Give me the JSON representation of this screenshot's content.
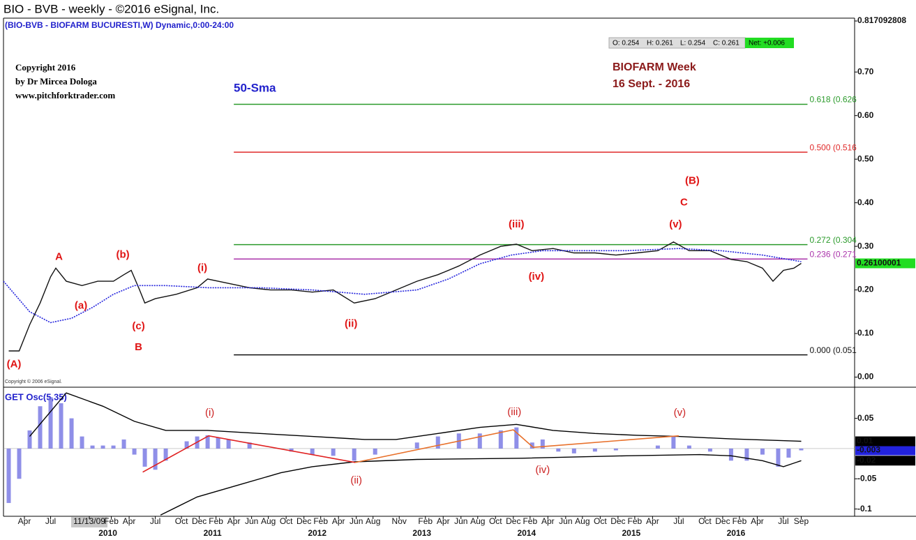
{
  "title": "BIO - BVB - weekly - ©2016 eSignal, Inc.",
  "subtitle": "(BIO-BVB - BIOFARM BUCURESTI,W) Dynamic,0:00-24:00",
  "copyright": [
    "Copyright 2016",
    "by Dr Mircea Dologa",
    "www.pitchforktrader.com"
  ],
  "note": [
    "BIOFARM Week",
    "16 Sept. -  2016"
  ],
  "esignal_note": "Copyright © 2006 eSignal.",
  "ohlc": [
    "O: 0.254",
    "H: 0.261",
    "L: 0.254",
    "C: 0.261"
  ],
  "net": "Net: +0.006",
  "chart_data": [
    {
      "type": "line",
      "xlim": [
        2009.05,
        2017.18
      ],
      "ylim": [
        -0.02,
        0.83
      ],
      "yticks": [
        {
          "value": 0,
          "label": "0.00"
        },
        {
          "value": 0.1,
          "label": "0.10"
        },
        {
          "value": 0.2,
          "label": "0.20"
        },
        {
          "value": 0.3,
          "label": "0.30"
        },
        {
          "value": 0.4,
          "label": "0.40"
        },
        {
          "value": 0.5,
          "label": "0.50"
        },
        {
          "value": 0.6,
          "label": "0.60"
        },
        {
          "value": 0.7,
          "label": "0.70"
        },
        0.817092808
      ],
      "xticks": [
        {
          "value": 2009.25,
          "label": "Apr"
        },
        {
          "value": 2009.5,
          "label": "Jul"
        },
        {
          "value": 2009.87,
          "label": "11/13/09"
        },
        {
          "value": 2010.08,
          "label": "Feb"
        },
        {
          "value": 2010.25,
          "label": "Apr"
        },
        {
          "value": 2010.5,
          "label": "Jul"
        },
        {
          "value": 2010.75,
          "label": "Oct"
        },
        {
          "value": 2010.92,
          "label": "Dec"
        },
        {
          "value": 2011.08,
          "label": "Feb"
        },
        {
          "value": 2011.25,
          "label": "Apr"
        },
        {
          "value": 2011.42,
          "label": "Jun"
        },
        {
          "value": 2011.58,
          "label": "Aug"
        },
        {
          "value": 2011.75,
          "label": "Oct"
        },
        {
          "value": 2011.92,
          "label": "Dec"
        },
        {
          "value": 2012.08,
          "label": "Feb"
        },
        {
          "value": 2012.25,
          "label": "Apr"
        },
        {
          "value": 2012.42,
          "label": "Jun"
        },
        {
          "value": 2012.58,
          "label": "Aug"
        },
        {
          "value": 2012.83,
          "label": "Nov"
        },
        {
          "value": 2013.08,
          "label": "Feb"
        },
        {
          "value": 2013.25,
          "label": "Apr"
        },
        {
          "value": 2013.42,
          "label": "Jun"
        },
        {
          "value": 2013.58,
          "label": "Aug"
        },
        {
          "value": 2013.75,
          "label": "Oct"
        },
        {
          "value": 2013.92,
          "label": "Dec"
        },
        {
          "value": 2014.08,
          "label": "Feb"
        },
        {
          "value": 2014.25,
          "label": "Apr"
        },
        {
          "value": 2014.42,
          "label": "Jun"
        },
        {
          "value": 2014.58,
          "label": "Aug"
        },
        {
          "value": 2014.75,
          "label": "Oct"
        },
        {
          "value": 2014.92,
          "label": "Dec"
        },
        {
          "value": 2015.08,
          "label": "Feb"
        },
        {
          "value": 2015.25,
          "label": "Apr"
        },
        {
          "value": 2015.5,
          "label": "Jul"
        },
        {
          "value": 2015.75,
          "label": "Oct"
        },
        {
          "value": 2015.92,
          "label": "Dec"
        },
        {
          "value": 2016.08,
          "label": "Feb"
        },
        {
          "value": 2016.25,
          "label": "Apr"
        },
        {
          "value": 2016.5,
          "label": "Jul"
        },
        {
          "value": 2016.67,
          "label": "Sep"
        }
      ],
      "cursor_tick": 2,
      "year_ticks": [
        2010,
        2011,
        2012,
        2013,
        2014,
        2015,
        2016
      ],
      "series": [
        {
          "color": "#111111",
          "kind": "line",
          "last_label": "0.26100001",
          "label_color": "#22dd22",
          "x": [
            2009.1,
            2009.2,
            2009.3,
            2009.4,
            2009.5,
            2009.55,
            2009.65,
            2009.8,
            2009.95,
            2010.1,
            2010.2,
            2010.27,
            2010.35,
            2010.4,
            2010.5,
            2010.7,
            2010.9,
            2011.0,
            2011.2,
            2011.4,
            2011.6,
            2011.8,
            2012.0,
            2012.2,
            2012.4,
            2012.6,
            2012.8,
            2013.0,
            2013.2,
            2013.4,
            2013.6,
            2013.8,
            2013.95,
            2014.1,
            2014.3,
            2014.5,
            2014.7,
            2014.9,
            2015.1,
            2015.3,
            2015.45,
            2015.6,
            2015.8,
            2016.0,
            2016.15,
            2016.3,
            2016.4,
            2016.5,
            2016.6,
            2016.67
          ],
          "values": [
            0.06,
            0.06,
            0.12,
            0.17,
            0.23,
            0.25,
            0.22,
            0.21,
            0.22,
            0.22,
            0.235,
            0.245,
            0.2,
            0.17,
            0.18,
            0.19,
            0.205,
            0.225,
            0.215,
            0.205,
            0.2,
            0.2,
            0.195,
            0.2,
            0.17,
            0.18,
            0.2,
            0.22,
            0.235,
            0.255,
            0.28,
            0.3,
            0.305,
            0.29,
            0.295,
            0.285,
            0.285,
            0.28,
            0.285,
            0.29,
            0.31,
            0.29,
            0.29,
            0.27,
            0.265,
            0.25,
            0.22,
            0.245,
            0.25,
            0.261
          ]
        },
        {
          "name": "50-Sma",
          "color": "#2222dd",
          "kind": "dotted",
          "x": [
            2009.05,
            2009.3,
            2009.5,
            2009.7,
            2009.9,
            2010.1,
            2010.3,
            2010.6,
            2011.0,
            2011.5,
            2012.0,
            2012.5,
            2013.0,
            2013.3,
            2013.6,
            2013.9,
            2014.2,
            2014.6,
            2015.0,
            2015.5,
            2015.9,
            2016.3,
            2016.67
          ],
          "values": [
            0.22,
            0.15,
            0.125,
            0.135,
            0.16,
            0.19,
            0.21,
            0.21,
            0.205,
            0.205,
            0.2,
            0.19,
            0.2,
            0.225,
            0.26,
            0.28,
            0.29,
            0.29,
            0.29,
            0.295,
            0.29,
            0.28,
            0.265
          ]
        }
      ],
      "levels_x": [
        2011.25,
        2016.73
      ],
      "levels": [
        {
          "label": "0.618 (0.626",
          "value": 0.626,
          "color": "#2a9a2a"
        },
        {
          "label": "0.500 (0.516",
          "value": 0.516,
          "color": "#e02a2a"
        },
        {
          "label": "0.272 (0.304",
          "value": 0.304,
          "color": "#2a9a2a"
        },
        {
          "label": "0.236 (0.271",
          "value": 0.271,
          "color": "#aa33aa"
        },
        {
          "label": "0.000 (0.051",
          "value": 0.051,
          "color": "#111111"
        }
      ],
      "annotation_color": "#e01515",
      "annotations": [
        {
          "text": "(A)",
          "x": 2009.15,
          "y": 0.029
        },
        {
          "text": "A",
          "x": 2009.58,
          "y": 0.275
        },
        {
          "text": "(a)",
          "x": 2009.79,
          "y": 0.163
        },
        {
          "text": "(b)",
          "x": 2010.19,
          "y": 0.28
        },
        {
          "text": "(c)",
          "x": 2010.34,
          "y": 0.116
        },
        {
          "text": "B",
          "x": 2010.34,
          "y": 0.068
        },
        {
          "text": "(i)",
          "x": 2010.95,
          "y": 0.25
        },
        {
          "text": "(ii)",
          "x": 2012.37,
          "y": 0.122
        },
        {
          "text": "(iii)",
          "x": 2013.95,
          "y": 0.35
        },
        {
          "text": "(iv)",
          "x": 2014.14,
          "y": 0.23
        },
        {
          "text": "(v)",
          "x": 2015.47,
          "y": 0.35
        },
        {
          "text": "C",
          "x": 2015.55,
          "y": 0.4
        },
        {
          "text": "(B)",
          "x": 2015.63,
          "y": 0.45
        }
      ]
    },
    {
      "type": "bar",
      "title": "GET Osc(5,35)",
      "xlim": [
        2009.05,
        2017.18
      ],
      "ylim": [
        -0.112,
        0.098
      ],
      "yticks": [
        0.05,
        -0.05,
        -0.1
      ],
      "series": [
        {
          "color": "#6a6ae0",
          "kind": "bar",
          "last_label": "-0.003",
          "label_color": "#2222dd",
          "x": [
            2009.1,
            2009.2,
            2009.3,
            2009.4,
            2009.5,
            2009.6,
            2009.7,
            2009.8,
            2009.9,
            2010.0,
            2010.1,
            2010.2,
            2010.3,
            2010.4,
            2010.5,
            2010.6,
            2010.7,
            2010.8,
            2010.9,
            2011.0,
            2011.1,
            2011.2,
            2011.4,
            2011.6,
            2011.8,
            2012.0,
            2012.2,
            2012.4,
            2012.6,
            2012.8,
            2013.0,
            2013.2,
            2013.4,
            2013.6,
            2013.8,
            2013.95,
            2014.1,
            2014.2,
            2014.35,
            2014.5,
            2014.7,
            2014.9,
            2015.1,
            2015.3,
            2015.45,
            2015.6,
            2015.8,
            2016.0,
            2016.15,
            2016.3,
            2016.45,
            2016.55,
            2016.67
          ],
          "values": [
            -0.09,
            -0.05,
            0.03,
            0.07,
            0.085,
            0.075,
            0.05,
            0.02,
            0.005,
            0.005,
            0.005,
            0.015,
            -0.01,
            -0.03,
            -0.035,
            -0.02,
            0,
            0.012,
            0.02,
            0.022,
            0.018,
            0.015,
            0.01,
            0,
            -0.005,
            -0.01,
            -0.012,
            -0.02,
            -0.01,
            0,
            0.01,
            0.02,
            0.025,
            0.025,
            0.03,
            0.035,
            0.01,
            0.015,
            -0.005,
            -0.008,
            -0.005,
            -0.003,
            0,
            0.005,
            0.02,
            0.005,
            -0.005,
            -0.02,
            -0.02,
            -0.01,
            -0.03,
            -0.015,
            -0.003
          ]
        },
        {
          "color": "#000000",
          "kind": "line",
          "last_label": "0.01",
          "label_color": "#000000",
          "x": [
            2009.3,
            2009.65,
            2010.0,
            2010.3,
            2010.6,
            2011.0,
            2011.5,
            2012.0,
            2012.5,
            2012.8,
            2013.2,
            2013.6,
            2013.95,
            2014.3,
            2014.7,
            2015.1,
            2015.5,
            2016.0,
            2016.67
          ],
          "values": [
            0.02,
            0.092,
            0.07,
            0.045,
            0.03,
            0.03,
            0.025,
            0.02,
            0.015,
            0.015,
            0.025,
            0.035,
            0.04,
            0.03,
            0.025,
            0.022,
            0.02,
            0.016,
            0.012
          ]
        },
        {
          "color": "#000000",
          "kind": "line",
          "last_label": "-0.02",
          "label_color": "#000000",
          "x": [
            2010.55,
            2010.9,
            2011.3,
            2011.7,
            2012.0,
            2012.4,
            2013.0,
            2014.0,
            2015.0,
            2015.7,
            2016.0,
            2016.3,
            2016.5,
            2016.67
          ],
          "values": [
            -0.11,
            -0.08,
            -0.06,
            -0.04,
            -0.03,
            -0.022,
            -0.018,
            -0.016,
            -0.012,
            -0.01,
            -0.012,
            -0.02,
            -0.03,
            -0.02
          ]
        }
      ],
      "trend_lines": [
        {
          "color": "#e02020",
          "x": [
            2010.38,
            2011.01,
            2012.41
          ],
          "y": [
            -0.039,
            0.021,
            -0.023
          ]
        },
        {
          "color": "#e8702a",
          "x": [
            2012.41,
            2013.92,
            2014.11,
            2015.5
          ],
          "y": [
            -0.023,
            0.031,
            0.002,
            0.021
          ]
        }
      ],
      "annotation_color": "#cc2222",
      "annotations": [
        {
          "text": "(i)",
          "x": 2011.02,
          "y": 0.059
        },
        {
          "text": "(ii)",
          "x": 2012.42,
          "y": -0.053
        },
        {
          "text": "(iii)",
          "x": 2013.93,
          "y": 0.06
        },
        {
          "text": "(iv)",
          "x": 2014.2,
          "y": -0.036
        },
        {
          "text": "(v)",
          "x": 2015.51,
          "y": 0.059
        }
      ]
    }
  ]
}
